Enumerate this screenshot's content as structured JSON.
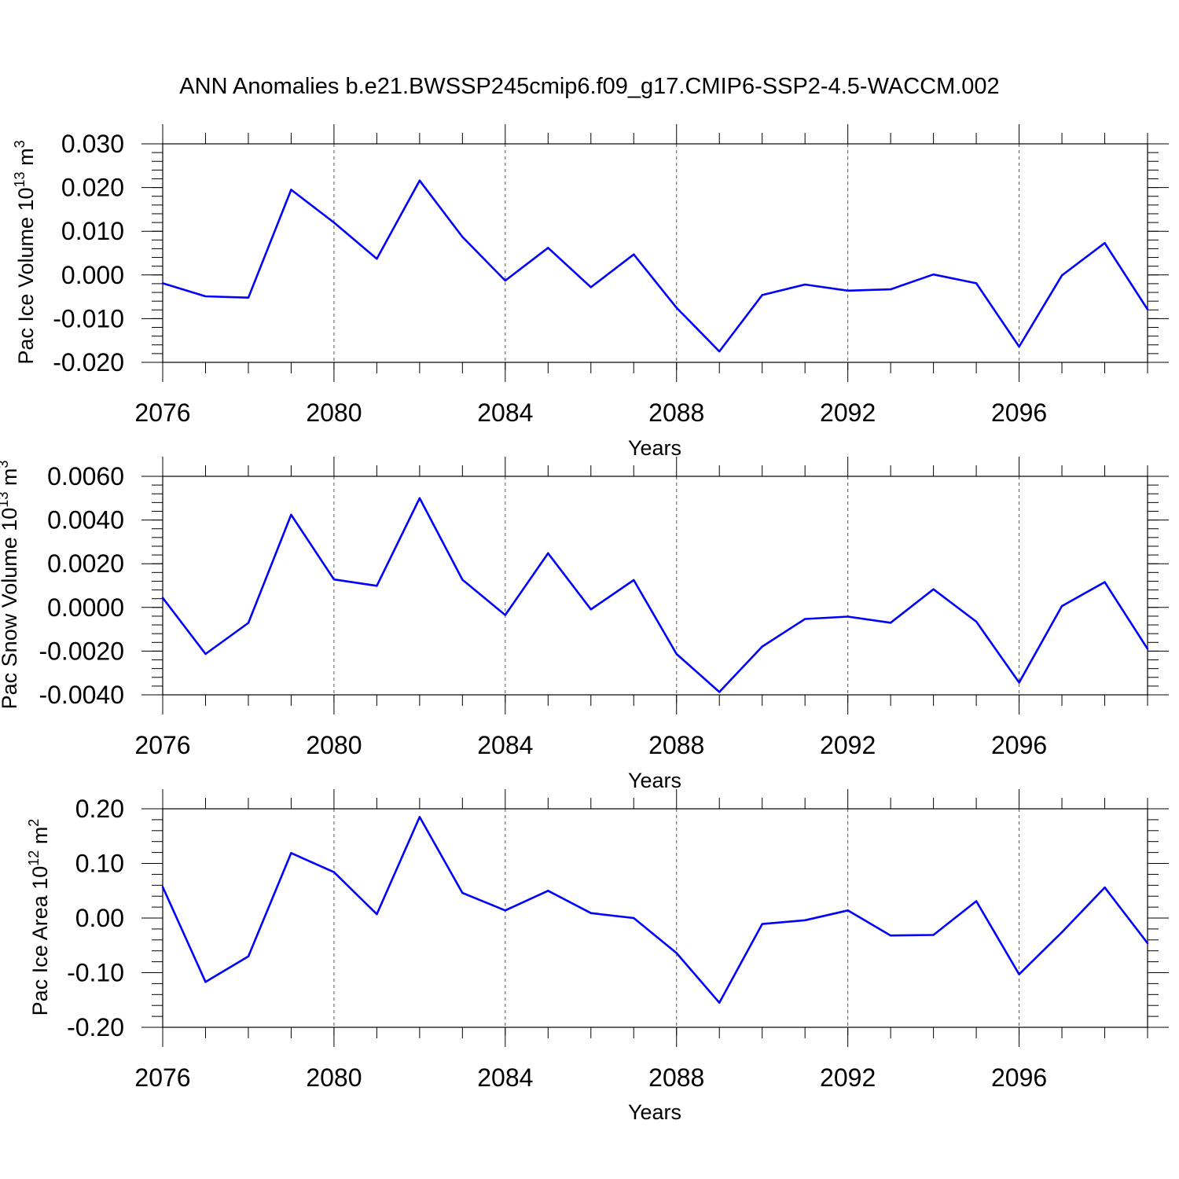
{
  "title": "ANN Anomalies b.e21.BWSSP245cmip6.f09_g17.CMIP6-SSP2-4.5-WACCM.002",
  "chart_data": [
    {
      "type": "line",
      "ylabel": "Pac Ice Volume 10",
      "ylabel_exp1": "13",
      "ylabel_unit": " m",
      "ylabel_exp2": "3",
      "xlabel": "Years",
      "xlim": [
        2076,
        2099
      ],
      "ylim": [
        -0.02,
        0.03
      ],
      "yticks": [
        0.03,
        0.02,
        0.01,
        0.0,
        -0.01,
        -0.02
      ],
      "ytick_labels": [
        "0.030",
        "0.020",
        "0.010",
        "0.000",
        "-0.010",
        "-0.020"
      ],
      "xticks": [
        2076,
        2080,
        2084,
        2088,
        2092,
        2096
      ],
      "xtick_labels": [
        "2076",
        "2080",
        "2084",
        "2088",
        "2092",
        "2096"
      ],
      "grid": "dashed vertical at major x ticks",
      "color": "#0000ff",
      "x": [
        2076,
        2077,
        2078,
        2079,
        2080,
        2081,
        2082,
        2083,
        2084,
        2085,
        2086,
        2087,
        2088,
        2089,
        2090,
        2091,
        2092,
        2093,
        2094,
        2095,
        2096,
        2097,
        2098,
        2099
      ],
      "values": [
        -0.0019,
        -0.0049,
        -0.0052,
        0.0195,
        0.012,
        0.0037,
        0.0216,
        0.0087,
        -0.0013,
        0.0062,
        -0.0028,
        0.0047,
        -0.0075,
        -0.0175,
        -0.0046,
        -0.0022,
        -0.0036,
        -0.0033,
        0.0001,
        -0.0019,
        -0.0164,
        -0.0001,
        0.0073,
        -0.0079
      ]
    },
    {
      "type": "line",
      "ylabel": "Pac Snow Volume 10",
      "ylabel_exp1": "13",
      "ylabel_unit": " m",
      "ylabel_exp2": "3",
      "xlabel": "Years",
      "xlim": [
        2076,
        2099
      ],
      "ylim": [
        -0.004,
        0.006
      ],
      "yticks": [
        0.006,
        0.004,
        0.002,
        0.0,
        -0.002,
        -0.004
      ],
      "ytick_labels": [
        "0.0060",
        "0.0040",
        "0.0020",
        "0.0000",
        "-0.0020",
        "-0.0040"
      ],
      "xticks": [
        2076,
        2080,
        2084,
        2088,
        2092,
        2096
      ],
      "xtick_labels": [
        "2076",
        "2080",
        "2084",
        "2088",
        "2092",
        "2096"
      ],
      "grid": "dashed vertical at major x ticks",
      "color": "#0000ff",
      "x": [
        2076,
        2077,
        2078,
        2079,
        2080,
        2081,
        2082,
        2083,
        2084,
        2085,
        2086,
        2087,
        2088,
        2089,
        2090,
        2091,
        2092,
        2093,
        2094,
        2095,
        2096,
        2097,
        2098,
        2099
      ],
      "values": [
        0.00044,
        -0.00213,
        -0.00071,
        0.00424,
        0.00128,
        0.00099,
        0.005,
        0.00127,
        -0.00035,
        0.00248,
        -9e-05,
        0.00125,
        -0.00213,
        -0.00387,
        -0.00179,
        -0.00053,
        -0.00042,
        -0.0007,
        0.00083,
        -0.00065,
        -0.00344,
        6e-05,
        0.00116,
        -0.0019
      ]
    },
    {
      "type": "line",
      "ylabel": "Pac Ice Area 10",
      "ylabel_exp1": "12",
      "ylabel_unit": " m",
      "ylabel_exp2": "2",
      "xlabel": "Years",
      "xlim": [
        2076,
        2099
      ],
      "ylim": [
        -0.2,
        0.2
      ],
      "yticks": [
        0.2,
        0.1,
        0.0,
        -0.1,
        -0.2
      ],
      "ytick_labels": [
        "0.20",
        "0.10",
        "0.00",
        "-0.10",
        "-0.20"
      ],
      "xticks": [
        2076,
        2080,
        2084,
        2088,
        2092,
        2096
      ],
      "xtick_labels": [
        "2076",
        "2080",
        "2084",
        "2088",
        "2092",
        "2096"
      ],
      "grid": "dashed vertical at major x ticks",
      "color": "#0000ff",
      "x": [
        2076,
        2077,
        2078,
        2079,
        2080,
        2081,
        2082,
        2083,
        2084,
        2085,
        2086,
        2087,
        2088,
        2089,
        2090,
        2091,
        2092,
        2093,
        2094,
        2095,
        2096,
        2097,
        2098,
        2099
      ],
      "values": [
        0.057,
        -0.117,
        -0.07,
        0.119,
        0.084,
        0.007,
        0.185,
        0.046,
        0.014,
        0.05,
        0.009,
        0.0,
        -0.064,
        -0.155,
        -0.011,
        -0.004,
        0.014,
        -0.032,
        -0.031,
        0.031,
        -0.103,
        -0.026,
        0.056,
        -0.046
      ]
    }
  ]
}
